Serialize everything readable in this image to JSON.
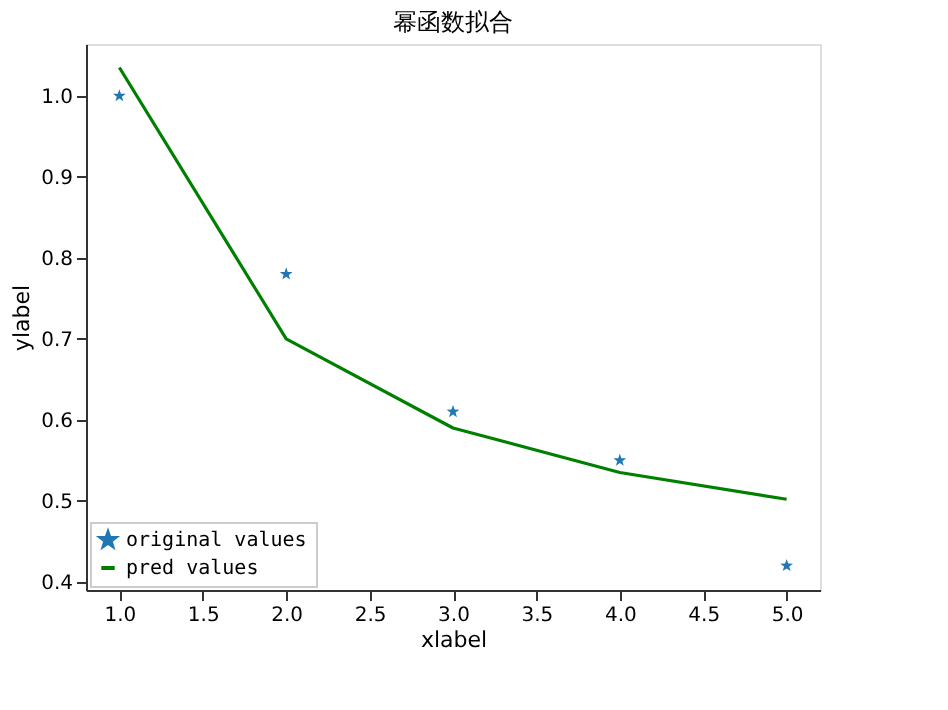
{
  "chart_data": {
    "type": "line",
    "title": "幂函数拟合",
    "xlabel": "xlabel",
    "ylabel": "ylabel",
    "x": [
      1,
      2,
      3,
      4,
      5
    ],
    "series": [
      {
        "name": "original values",
        "type": "scatter",
        "marker": "star",
        "color": "#1f77b4",
        "values": [
          1.0,
          0.78,
          0.61,
          0.55,
          0.42
        ]
      },
      {
        "name": "pred values",
        "marker": "none",
        "line_style": "solid",
        "color": "#008000",
        "values": [
          1.035,
          0.7,
          0.59,
          0.535,
          0.502
        ]
      }
    ],
    "xlim": [
      0.8,
      5.2
    ],
    "xticks": [
      {
        "value": 1,
        "label": "1.0"
      },
      {
        "value": 1.5,
        "label": "1.5"
      },
      {
        "value": 2,
        "label": "2.0"
      },
      {
        "value": 2.5,
        "label": "2.5"
      },
      {
        "value": 3,
        "label": "3.0"
      },
      {
        "value": 3.5,
        "label": "3.5"
      },
      {
        "value": 4,
        "label": "4.0"
      },
      {
        "value": 4.5,
        "label": "4.5"
      },
      {
        "value": 5,
        "label": "5.0"
      }
    ],
    "ylim": [
      0.39,
      1.064
    ],
    "yticks": [
      {
        "value": 0.4,
        "label": "0.4"
      },
      {
        "value": 0.5,
        "label": "0.5"
      },
      {
        "value": 0.6,
        "label": "0.6"
      },
      {
        "value": 0.7,
        "label": "0.7"
      },
      {
        "value": 0.8,
        "label": "0.8"
      },
      {
        "value": 0.9,
        "label": "0.9"
      },
      {
        "value": 1.0,
        "label": "1.0"
      }
    ],
    "grid": false,
    "legend": "bottom left"
  }
}
